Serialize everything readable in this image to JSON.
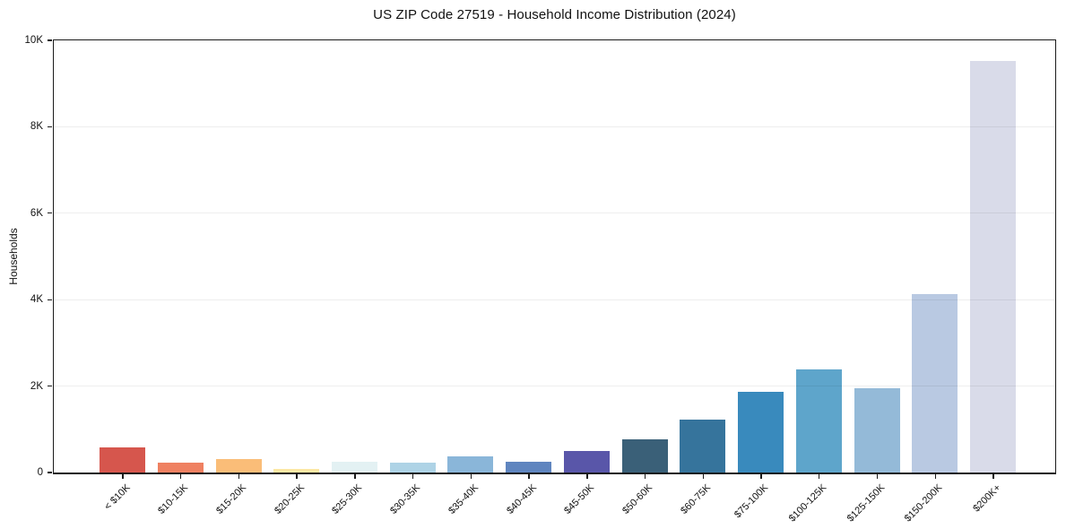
{
  "chart_data": {
    "type": "bar",
    "title": "US ZIP Code 27519 - Household Income Distribution (2024)",
    "xlabel": "",
    "ylabel": "Households",
    "categories": [
      "< $10K",
      "$10-15K",
      "$15-20K",
      "$20-25K",
      "$25-30K",
      "$30-35K",
      "$35-40K",
      "$40-45K",
      "$45-50K",
      "$50-60K",
      "$60-75K",
      "$75-100K",
      "$100-125K",
      "$125-150K",
      "$150-200K",
      "$200K+"
    ],
    "values": [
      580,
      210,
      300,
      65,
      240,
      220,
      375,
      250,
      500,
      750,
      1210,
      1850,
      2370,
      1940,
      4130,
      9520
    ],
    "bar_colors": [
      "#d6564d",
      "#ef8061",
      "#fabd78",
      "#fce8a5",
      "#e3f1f3",
      "#aed3e6",
      "#8ab6d9",
      "#5f85bf",
      "#5956a9",
      "#3a6078",
      "#36749c",
      "#398abd",
      "#5ea5cb",
      "#94bad8",
      "#b9c9e2",
      "#d9dbe9"
    ],
    "ylim": [
      0,
      10000
    ],
    "yticks": [
      {
        "value": 0,
        "label": "0"
      },
      {
        "value": 2000,
        "label": "2K"
      },
      {
        "value": 4000,
        "label": "4K"
      },
      {
        "value": 6000,
        "label": "6K"
      },
      {
        "value": 8000,
        "label": "8K"
      },
      {
        "value": 10000,
        "label": "10K"
      }
    ],
    "grid": "horizontal-light",
    "legend": "none"
  }
}
